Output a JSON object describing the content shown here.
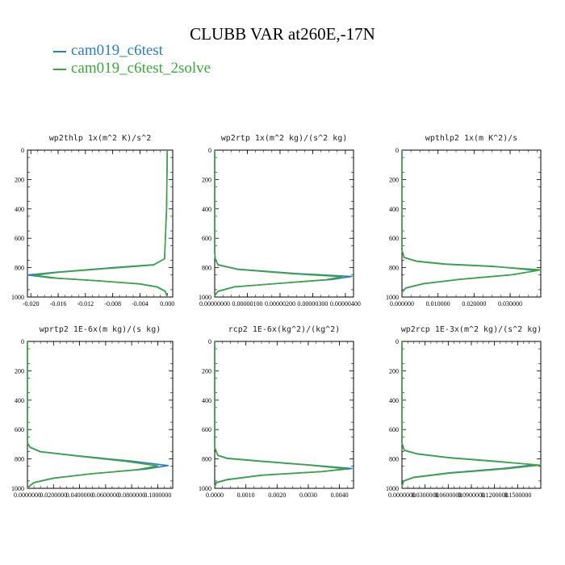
{
  "chart_data": {
    "title": "CLUBB VAR at260E,-17N",
    "legend": [
      {
        "name": "cam019_c6test",
        "color": "#2e7bbf"
      },
      {
        "name": "cam019_c6test_2solve",
        "color": "#3ea53e"
      }
    ],
    "panels": [
      {
        "type": "line",
        "title": "wp2thlp",
        "units": "1x(m^2 K)/s^2",
        "xticks": [
          "-0.020",
          "-0.016",
          "-0.012",
          "-0.008",
          "-0.004",
          "0.000"
        ],
        "xlim": [
          -0.0205,
          0.0008
        ],
        "yticks": [
          "0",
          "200",
          "400",
          "600",
          "800",
          "1000"
        ],
        "ylim": [
          0,
          1000
        ],
        "series": [
          {
            "name": "cam019_c6test",
            "x": [
              0.0,
              -0.0001,
              -0.0004,
              -0.002,
              -0.008,
              -0.016,
              -0.0205,
              -0.017,
              -0.01,
              -0.004,
              -0.0015,
              -0.0003,
              0.0
            ],
            "y": [
              0,
              400,
              740,
              780,
              800,
              830,
              850,
              870,
              890,
              910,
              930,
              960,
              1000
            ]
          },
          {
            "name": "cam019_c6test_2solve",
            "x": [
              0.0,
              -0.0001,
              -0.0004,
              -0.002,
              -0.008,
              -0.016,
              -0.0195,
              -0.016,
              -0.0095,
              -0.004,
              -0.0015,
              -0.0003,
              0.0
            ],
            "y": [
              0,
              400,
              740,
              782,
              803,
              832,
              852,
              872,
              892,
              912,
              932,
              962,
              1000
            ]
          }
        ]
      },
      {
        "type": "line",
        "title": "wp2rtp",
        "units": "1x(m^2 kg)/(s^2 kg)",
        "xticks": [
          "0.00000000",
          "0.00000100",
          "0.00000200",
          "0.00000300",
          "0.00000400"
        ],
        "xlim": [
          0,
          4.25e-06
        ],
        "yticks": [
          "0",
          "200",
          "400",
          "600",
          "800",
          "1000"
        ],
        "ylim": [
          0,
          1000
        ],
        "series": [
          {
            "name": "cam019_c6test",
            "x": [
              0.0,
              0.0,
              2e-08,
              1e-07,
              7e-07,
              2.5e-06,
              4.2e-06,
              3.6e-06,
              1.8e-06,
              6e-07,
              1e-07,
              0.0
            ],
            "y": [
              0,
              700,
              740,
              780,
              810,
              840,
              860,
              880,
              910,
              930,
              960,
              990
            ]
          },
          {
            "name": "cam019_c6test_2solve",
            "x": [
              0.0,
              0.0,
              2e-08,
              1e-07,
              7e-07,
              2.4e-06,
              3.9e-06,
              3.4e-06,
              1.7e-06,
              6e-07,
              1e-07,
              0.0
            ],
            "y": [
              0,
              700,
              742,
              782,
              812,
              842,
              862,
              882,
              912,
              932,
              962,
              992
            ]
          }
        ]
      },
      {
        "type": "line",
        "title": "wpthlp2",
        "units": "1x(m K^2)/s",
        "xticks": [
          "0.000000",
          "0.010000",
          "0.020000",
          "0.030000"
        ],
        "xlim": [
          0,
          0.0385
        ],
        "yticks": [
          "0",
          "200",
          "400",
          "600",
          "800",
          "1000"
        ],
        "ylim": [
          0,
          1000
        ],
        "series": [
          {
            "name": "cam019_c6test",
            "x": [
              0.0,
              0.0,
              0.0006,
              0.004,
              0.012,
              0.025,
              0.0375,
              0.03,
              0.016,
              0.006,
              0.001,
              0.0
            ],
            "y": [
              0,
              680,
              730,
              755,
              775,
              790,
              820,
              850,
              880,
              910,
              940,
              970
            ]
          },
          {
            "name": "cam019_c6test_2solve",
            "x": [
              0.0,
              0.0,
              0.0006,
              0.004,
              0.012,
              0.025,
              0.0385,
              0.031,
              0.0165,
              0.006,
              0.001,
              0.0
            ],
            "y": [
              0,
              680,
              732,
              757,
              777,
              792,
              815,
              847,
              878,
              908,
              938,
              968
            ]
          }
        ]
      },
      {
        "type": "line",
        "title": "wprtp2",
        "units": "1E-6x(m kg)/(s kg)",
        "xticks": [
          "0.0000000",
          "0.0200000",
          "0.0400000",
          "0.0600000",
          "0.0800000",
          "0.1000000"
        ],
        "xlim": [
          0,
          0.1115
        ],
        "yticks": [
          "0",
          "200",
          "400",
          "600",
          "800",
          "1000"
        ],
        "ylim": [
          0,
          1000
        ],
        "series": [
          {
            "name": "cam019_c6test",
            "x": [
              0.0,
              0.0,
              0.002,
              0.01,
              0.04,
              0.08,
              0.108,
              0.09,
              0.05,
              0.02,
              0.005,
              0.0
            ],
            "y": [
              0,
              690,
              720,
              750,
              780,
              815,
              845,
              870,
              900,
              930,
              960,
              995
            ]
          },
          {
            "name": "cam019_c6test_2solve",
            "x": [
              0.0,
              0.0,
              0.002,
              0.01,
              0.04,
              0.076,
              0.1,
              0.085,
              0.048,
              0.02,
              0.005,
              0.0
            ],
            "y": [
              0,
              690,
              722,
              752,
              782,
              817,
              847,
              872,
              902,
              932,
              962,
              997
            ]
          }
        ]
      },
      {
        "type": "line",
        "title": "rcp2",
        "units": "1E-6x(kg^2)/(kg^2)",
        "xticks": [
          "0.0000",
          "0.0010",
          "0.0020",
          "0.0030",
          "0.0040"
        ],
        "xlim": [
          0,
          0.00445
        ],
        "yticks": [
          "0",
          "200",
          "400",
          "600",
          "800",
          "1000"
        ],
        "ylim": [
          0,
          1000
        ],
        "series": [
          {
            "name": "cam019_c6test",
            "x": [
              0.0,
              0.0,
              0.0001,
              0.0004,
              0.0015,
              0.003,
              0.0044,
              0.0035,
              0.0015,
              0.0004,
              5e-05,
              0.0
            ],
            "y": [
              0,
              720,
              775,
              795,
              815,
              840,
              865,
              885,
              910,
              940,
              960,
              990
            ]
          },
          {
            "name": "cam019_c6test_2solve",
            "x": [
              0.0,
              0.0,
              0.0001,
              0.0004,
              0.0015,
              0.003,
              0.0042,
              0.0034,
              0.0015,
              0.0004,
              5e-05,
              0.0
            ],
            "y": [
              0,
              720,
              777,
              797,
              817,
              842,
              867,
              887,
              912,
              942,
              962,
              992
            ]
          }
        ]
      },
      {
        "type": "line",
        "title": "wp2rcp",
        "units": "1E-3x(m^2 kg)/(s^2 kg)",
        "xticks": [
          "0.0000000",
          "0.0300000",
          "0.0600000",
          "0.0900000",
          "0.1200000",
          "0.1500000"
        ],
        "xlim": [
          0,
          0.18
        ],
        "yticks": [
          "0",
          "200",
          "400",
          "600",
          "800",
          "1000"
        ],
        "ylim": [
          0,
          1000
        ],
        "series": [
          {
            "name": "cam019_c6test",
            "x": [
              0.0,
              0.0,
              0.003,
              0.02,
              0.06,
              0.12,
              0.172,
              0.13,
              0.06,
              0.015,
              0.002,
              0.0
            ],
            "y": [
              0,
              690,
              740,
              765,
              790,
              815,
              840,
              865,
              895,
              925,
              950,
              990
            ]
          },
          {
            "name": "cam019_c6test_2solve",
            "x": [
              0.0,
              0.0,
              0.003,
              0.02,
              0.06,
              0.12,
              0.18,
              0.135,
              0.062,
              0.015,
              0.002,
              0.0
            ],
            "y": [
              0,
              690,
              742,
              767,
              792,
              817,
              842,
              867,
              897,
              927,
              952,
              992
            ]
          }
        ]
      }
    ]
  }
}
